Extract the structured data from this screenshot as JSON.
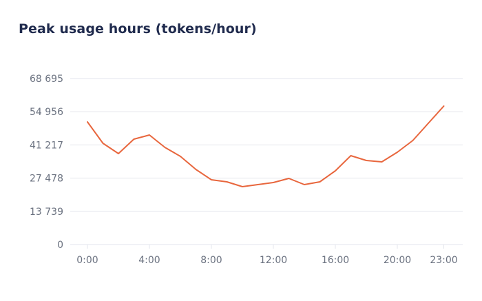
{
  "title": "Peak usage hours (tokens/hour)",
  "colors": {
    "line": "#e8663d",
    "grid": "#e3e6ec",
    "tick_text": "#6b7280",
    "title": "#1f2a4d"
  },
  "chart_data": {
    "type": "line",
    "title": "Peak usage hours (tokens/hour)",
    "xlabel": "",
    "ylabel": "",
    "x": [
      "0:00",
      "1:00",
      "2:00",
      "3:00",
      "4:00",
      "5:00",
      "6:00",
      "7:00",
      "8:00",
      "9:00",
      "10:00",
      "11:00",
      "12:00",
      "13:00",
      "14:00",
      "15:00",
      "16:00",
      "17:00",
      "18:00",
      "19:00",
      "20:00",
      "21:00",
      "22:00",
      "23:00"
    ],
    "series": [
      {
        "name": "tokens/hour",
        "values": [
          50737,
          41901,
          37625,
          43611,
          45321,
          40190,
          36485,
          31069,
          26794,
          25939,
          23943,
          24799,
          25654,
          27364,
          24799,
          25939,
          30499,
          36770,
          34775,
          34205,
          38195,
          43041,
          50167,
          57293
        ]
      }
    ],
    "ylim": [
      0,
      68695
    ],
    "yticks": [
      0,
      13739,
      27478,
      41217,
      54956,
      68695
    ],
    "ytick_labels": [
      "0",
      "13 739",
      "27 478",
      "41 217",
      "54 956",
      "68 695"
    ],
    "xtick_labels": [
      "0:00",
      "4:00",
      "8:00",
      "12:00",
      "16:00",
      "20:00",
      "23:00"
    ],
    "xtick_hours": [
      0,
      4,
      8,
      12,
      16,
      20,
      23
    ],
    "grid": true,
    "legend": null
  }
}
